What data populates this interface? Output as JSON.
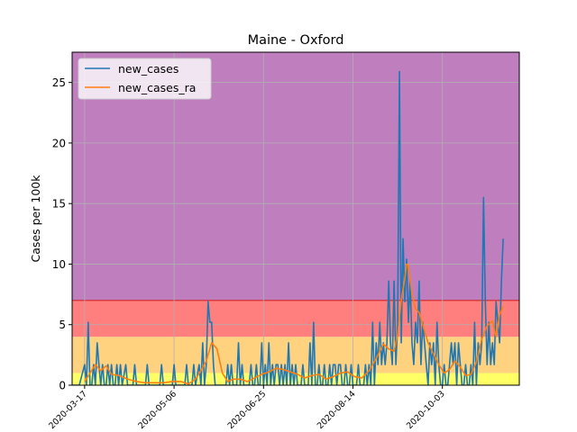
{
  "chart_data": {
    "type": "line",
    "title": "Maine - Oxford",
    "xlabel": "",
    "ylabel": "Cases per 100k",
    "ylim": [
      0,
      27.5
    ],
    "xlim": [
      "2020-03-10",
      "2020-11-15"
    ],
    "grid": true,
    "legend_position": "top-left",
    "y_ticks": [
      0,
      5,
      10,
      15,
      20,
      25
    ],
    "y_tick_labels": [
      "0",
      "5",
      "10",
      "15",
      "20",
      "25"
    ],
    "x_ticks": [
      "2020-03-17",
      "2020-05-06",
      "2020-06-25",
      "2020-08-14",
      "2020-10-03",
      "2020-11-22"
    ],
    "x_tick_labels": [
      "2020-03-17",
      "2020-05-06",
      "2020-06-25",
      "2020-08-14",
      "2020-10-03",
      ""
    ],
    "risk_bands": [
      {
        "from": 0,
        "to": 1,
        "color": "#ffff66"
      },
      {
        "from": 1,
        "to": 4,
        "color": "#ffd27f"
      },
      {
        "from": 4,
        "to": 7,
        "color": "#ff7f7f"
      },
      {
        "from": 7,
        "to": 27.5,
        "color": "#bf7fbf"
      }
    ],
    "band_line_color": "#d62728",
    "band_lines": [
      7
    ],
    "series": [
      {
        "name": "new_cases",
        "color": "#1f77b4",
        "points": [
          [
            "2020-03-10",
            0
          ],
          [
            "2020-03-14",
            0
          ],
          [
            "2020-03-17",
            1.7
          ],
          [
            "2020-03-18",
            0
          ],
          [
            "2020-03-19",
            5.2
          ],
          [
            "2020-03-20",
            0
          ],
          [
            "2020-03-21",
            0
          ],
          [
            "2020-03-22",
            1.7
          ],
          [
            "2020-03-23",
            0
          ],
          [
            "2020-03-24",
            3.5
          ],
          [
            "2020-03-25",
            1.7
          ],
          [
            "2020-03-26",
            0
          ],
          [
            "2020-03-27",
            1.7
          ],
          [
            "2020-03-28",
            0
          ],
          [
            "2020-03-29",
            0
          ],
          [
            "2020-03-30",
            1.7
          ],
          [
            "2020-03-31",
            0
          ],
          [
            "2020-04-01",
            1.7
          ],
          [
            "2020-04-02",
            0
          ],
          [
            "2020-04-03",
            0
          ],
          [
            "2020-04-04",
            1.7
          ],
          [
            "2020-04-05",
            0
          ],
          [
            "2020-04-06",
            1.7
          ],
          [
            "2020-04-07",
            0
          ],
          [
            "2020-04-09",
            1.7
          ],
          [
            "2020-04-10",
            0
          ],
          [
            "2020-04-13",
            0
          ],
          [
            "2020-04-14",
            1.7
          ],
          [
            "2020-04-15",
            0
          ],
          [
            "2020-04-20",
            0
          ],
          [
            "2020-04-21",
            1.7
          ],
          [
            "2020-04-22",
            0
          ],
          [
            "2020-04-28",
            0
          ],
          [
            "2020-04-29",
            1.7
          ],
          [
            "2020-04-30",
            0
          ],
          [
            "2020-05-05",
            0
          ],
          [
            "2020-05-06",
            1.7
          ],
          [
            "2020-05-07",
            0
          ],
          [
            "2020-05-12",
            0
          ],
          [
            "2020-05-13",
            1.7
          ],
          [
            "2020-05-14",
            0
          ],
          [
            "2020-05-16",
            0
          ],
          [
            "2020-05-17",
            1.7
          ],
          [
            "2020-05-18",
            0
          ],
          [
            "2020-05-20",
            1.7
          ],
          [
            "2020-05-21",
            0
          ],
          [
            "2020-05-22",
            3.5
          ],
          [
            "2020-05-23",
            0
          ],
          [
            "2020-05-24",
            1.7
          ],
          [
            "2020-05-25",
            6.9
          ],
          [
            "2020-05-26",
            5.2
          ],
          [
            "2020-05-27",
            5.2
          ],
          [
            "2020-05-28",
            1.7
          ],
          [
            "2020-05-29",
            0
          ],
          [
            "2020-06-04",
            0
          ],
          [
            "2020-06-05",
            1.7
          ],
          [
            "2020-06-06",
            0
          ],
          [
            "2020-06-07",
            1.7
          ],
          [
            "2020-06-08",
            0
          ],
          [
            "2020-06-10",
            0
          ],
          [
            "2020-06-11",
            3.5
          ],
          [
            "2020-06-12",
            0
          ],
          [
            "2020-06-13",
            1.7
          ],
          [
            "2020-06-14",
            0
          ],
          [
            "2020-06-17",
            0
          ],
          [
            "2020-06-18",
            1.7
          ],
          [
            "2020-06-19",
            0
          ],
          [
            "2020-06-20",
            0
          ],
          [
            "2020-06-21",
            1.7
          ],
          [
            "2020-06-22",
            0
          ],
          [
            "2020-06-23",
            0
          ],
          [
            "2020-06-24",
            3.5
          ],
          [
            "2020-06-25",
            0
          ],
          [
            "2020-06-26",
            1.7
          ],
          [
            "2020-06-27",
            0
          ],
          [
            "2020-06-28",
            3.5
          ],
          [
            "2020-06-29",
            0
          ],
          [
            "2020-06-30",
            1.7
          ],
          [
            "2020-07-01",
            0
          ],
          [
            "2020-07-02",
            1.7
          ],
          [
            "2020-07-03",
            1.7
          ],
          [
            "2020-07-04",
            0
          ],
          [
            "2020-07-05",
            1.7
          ],
          [
            "2020-07-06",
            0
          ],
          [
            "2020-07-07",
            1.7
          ],
          [
            "2020-07-08",
            0
          ],
          [
            "2020-07-09",
            3.5
          ],
          [
            "2020-07-10",
            0
          ],
          [
            "2020-07-11",
            1.7
          ],
          [
            "2020-07-12",
            0
          ],
          [
            "2020-07-13",
            1.7
          ],
          [
            "2020-07-14",
            0
          ],
          [
            "2020-07-16",
            0
          ],
          [
            "2020-07-17",
            1.7
          ],
          [
            "2020-07-18",
            0
          ],
          [
            "2020-07-20",
            0
          ],
          [
            "2020-07-21",
            3.5
          ],
          [
            "2020-07-22",
            0
          ],
          [
            "2020-07-23",
            5.2
          ],
          [
            "2020-07-24",
            0
          ],
          [
            "2020-07-25",
            0
          ],
          [
            "2020-07-26",
            1.7
          ],
          [
            "2020-07-27",
            0
          ],
          [
            "2020-07-28",
            0
          ],
          [
            "2020-07-29",
            1.7
          ],
          [
            "2020-07-30",
            0
          ],
          [
            "2020-07-31",
            0
          ],
          [
            "2020-08-01",
            1.7
          ],
          [
            "2020-08-02",
            0
          ],
          [
            "2020-08-03",
            1.7
          ],
          [
            "2020-08-04",
            1.7
          ],
          [
            "2020-08-05",
            0
          ],
          [
            "2020-08-06",
            1.7
          ],
          [
            "2020-08-07",
            1.7
          ],
          [
            "2020-08-08",
            0
          ],
          [
            "2020-08-09",
            0
          ],
          [
            "2020-08-10",
            1.7
          ],
          [
            "2020-08-11",
            0
          ],
          [
            "2020-08-12",
            0
          ],
          [
            "2020-08-13",
            1.7
          ],
          [
            "2020-08-14",
            0
          ],
          [
            "2020-08-16",
            0
          ],
          [
            "2020-08-17",
            1.7
          ],
          [
            "2020-08-18",
            0
          ],
          [
            "2020-08-20",
            0
          ],
          [
            "2020-08-21",
            1.7
          ],
          [
            "2020-08-22",
            0
          ],
          [
            "2020-08-23",
            1.7
          ],
          [
            "2020-08-24",
            0
          ],
          [
            "2020-08-25",
            5.2
          ],
          [
            "2020-08-26",
            0
          ],
          [
            "2020-08-27",
            3.5
          ],
          [
            "2020-08-28",
            1.7
          ],
          [
            "2020-08-29",
            5.2
          ],
          [
            "2020-08-30",
            1.7
          ],
          [
            "2020-08-31",
            3.5
          ],
          [
            "2020-09-01",
            1.7
          ],
          [
            "2020-09-02",
            3.5
          ],
          [
            "2020-09-03",
            8.6
          ],
          [
            "2020-09-04",
            3.5
          ],
          [
            "2020-09-05",
            1.7
          ],
          [
            "2020-09-06",
            8.6
          ],
          [
            "2020-09-07",
            1.7
          ],
          [
            "2020-09-08",
            5.2
          ],
          [
            "2020-09-09",
            25.9
          ],
          [
            "2020-09-10",
            3.5
          ],
          [
            "2020-09-11",
            12.1
          ],
          [
            "2020-09-12",
            6.9
          ],
          [
            "2020-09-13",
            10.4
          ],
          [
            "2020-09-14",
            5.2
          ],
          [
            "2020-09-15",
            8.6
          ],
          [
            "2020-09-16",
            3.5
          ],
          [
            "2020-09-17",
            1.7
          ],
          [
            "2020-09-18",
            5.2
          ],
          [
            "2020-09-19",
            3.5
          ],
          [
            "2020-09-20",
            8.6
          ],
          [
            "2020-09-21",
            1.7
          ],
          [
            "2020-09-22",
            5.2
          ],
          [
            "2020-09-23",
            3.5
          ],
          [
            "2020-09-24",
            1.7
          ],
          [
            "2020-09-25",
            0
          ],
          [
            "2020-09-26",
            3.5
          ],
          [
            "2020-09-27",
            1.7
          ],
          [
            "2020-09-28",
            3.5
          ],
          [
            "2020-09-29",
            0
          ],
          [
            "2020-09-30",
            5.2
          ],
          [
            "2020-10-01",
            1.7
          ],
          [
            "2020-10-02",
            0
          ],
          [
            "2020-10-03",
            0
          ],
          [
            "2020-10-04",
            1.7
          ],
          [
            "2020-10-05",
            0
          ],
          [
            "2020-10-06",
            0
          ],
          [
            "2020-10-07",
            1.7
          ],
          [
            "2020-10-08",
            3.5
          ],
          [
            "2020-10-09",
            1.7
          ],
          [
            "2020-10-10",
            3.5
          ],
          [
            "2020-10-11",
            0
          ],
          [
            "2020-10-12",
            3.5
          ],
          [
            "2020-10-13",
            1.7
          ],
          [
            "2020-10-14",
            0
          ],
          [
            "2020-10-15",
            0
          ],
          [
            "2020-10-16",
            1.7
          ],
          [
            "2020-10-17",
            0
          ],
          [
            "2020-10-18",
            0
          ],
          [
            "2020-10-19",
            1.7
          ],
          [
            "2020-10-20",
            0
          ],
          [
            "2020-10-21",
            5.2
          ],
          [
            "2020-10-22",
            0
          ],
          [
            "2020-10-23",
            3.5
          ],
          [
            "2020-10-24",
            1.7
          ],
          [
            "2020-10-25",
            3.5
          ],
          [
            "2020-10-26",
            15.5
          ],
          [
            "2020-10-27",
            6.9
          ],
          [
            "2020-10-28",
            1.7
          ],
          [
            "2020-10-29",
            5.2
          ],
          [
            "2020-10-30",
            1.7
          ],
          [
            "2020-10-31",
            3.5
          ],
          [
            "2020-11-01",
            1.7
          ],
          [
            "2020-11-02",
            6.9
          ],
          [
            "2020-11-03",
            5.2
          ],
          [
            "2020-11-04",
            3.5
          ],
          [
            "2020-11-05",
            8.6
          ],
          [
            "2020-11-06",
            12.1
          ]
        ]
      },
      {
        "name": "new_cases_ra",
        "color": "#ff7f0e",
        "points": [
          [
            "2020-03-17",
            0.3
          ],
          [
            "2020-03-20",
            1.0
          ],
          [
            "2020-03-23",
            1.7
          ],
          [
            "2020-03-26",
            1.2
          ],
          [
            "2020-03-29",
            1.6
          ],
          [
            "2020-04-01",
            0.9
          ],
          [
            "2020-04-05",
            0.8
          ],
          [
            "2020-04-10",
            0.5
          ],
          [
            "2020-04-15",
            0.3
          ],
          [
            "2020-04-20",
            0.2
          ],
          [
            "2020-04-25",
            0.2
          ],
          [
            "2020-04-30",
            0.2
          ],
          [
            "2020-05-05",
            0.3
          ],
          [
            "2020-05-10",
            0.3
          ],
          [
            "2020-05-14",
            0.1
          ],
          [
            "2020-05-18",
            0.5
          ],
          [
            "2020-05-21",
            1.2
          ],
          [
            "2020-05-24",
            2.0
          ],
          [
            "2020-05-27",
            3.5
          ],
          [
            "2020-05-30",
            3.0
          ],
          [
            "2020-06-02",
            1.0
          ],
          [
            "2020-06-05",
            0.3
          ],
          [
            "2020-06-08",
            0.5
          ],
          [
            "2020-06-12",
            0.5
          ],
          [
            "2020-06-16",
            0.3
          ],
          [
            "2020-06-20",
            0.6
          ],
          [
            "2020-06-24",
            0.9
          ],
          [
            "2020-06-28",
            1.1
          ],
          [
            "2020-07-02",
            1.4
          ],
          [
            "2020-07-06",
            1.3
          ],
          [
            "2020-07-10",
            1.1
          ],
          [
            "2020-07-14",
            0.9
          ],
          [
            "2020-07-18",
            0.6
          ],
          [
            "2020-07-22",
            0.8
          ],
          [
            "2020-07-26",
            0.9
          ],
          [
            "2020-07-30",
            0.5
          ],
          [
            "2020-08-03",
            0.7
          ],
          [
            "2020-08-07",
            1.0
          ],
          [
            "2020-08-11",
            1.1
          ],
          [
            "2020-08-15",
            0.7
          ],
          [
            "2020-08-19",
            0.6
          ],
          [
            "2020-08-23",
            1.2
          ],
          [
            "2020-08-27",
            2.2
          ],
          [
            "2020-08-31",
            3.4
          ],
          [
            "2020-09-03",
            3.0
          ],
          [
            "2020-09-06",
            2.8
          ],
          [
            "2020-09-08",
            4.2
          ],
          [
            "2020-09-10",
            7.0
          ],
          [
            "2020-09-12",
            8.8
          ],
          [
            "2020-09-13",
            10.0
          ],
          [
            "2020-09-14",
            9.9
          ],
          [
            "2020-09-16",
            7.5
          ],
          [
            "2020-09-18",
            6.3
          ],
          [
            "2020-09-20",
            6.0
          ],
          [
            "2020-09-22",
            5.0
          ],
          [
            "2020-09-25",
            3.5
          ],
          [
            "2020-09-28",
            2.6
          ],
          [
            "2020-10-01",
            1.7
          ],
          [
            "2020-10-04",
            1.0
          ],
          [
            "2020-10-07",
            1.3
          ],
          [
            "2020-10-10",
            2.0
          ],
          [
            "2020-10-13",
            1.5
          ],
          [
            "2020-10-16",
            0.8
          ],
          [
            "2020-10-19",
            0.9
          ],
          [
            "2020-10-22",
            1.9
          ],
          [
            "2020-10-25",
            3.8
          ],
          [
            "2020-10-28",
            4.9
          ],
          [
            "2020-10-31",
            5.3
          ],
          [
            "2020-11-02",
            4.0
          ],
          [
            "2020-11-04",
            5.8
          ],
          [
            "2020-11-06",
            6.5
          ]
        ]
      }
    ]
  }
}
